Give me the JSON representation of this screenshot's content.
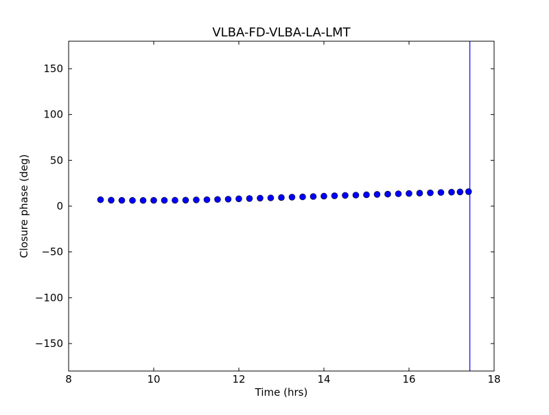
{
  "chart_data": {
    "type": "scatter",
    "title": "VLBA-FD-VLBA-LA-LMT",
    "xlabel": "Time (hrs)",
    "ylabel": "Closure phase (deg)",
    "xlim": [
      8,
      18
    ],
    "ylim": [
      -180,
      180
    ],
    "xticks": [
      8,
      10,
      12,
      14,
      16,
      18
    ],
    "xtick_labels": [
      "8",
      "10",
      "12",
      "14",
      "16",
      "18"
    ],
    "yticks": [
      -150,
      -100,
      -50,
      0,
      50,
      100,
      150
    ],
    "ytick_labels": [
      "−150",
      "−100",
      "−50",
      "0",
      "50",
      "100",
      "150"
    ],
    "grid": false,
    "legend": false,
    "vertical_line_x": 17.43,
    "marker_color": "#0000ff",
    "line_color": "#0000ff",
    "x": [
      8.75,
      9.0,
      9.25,
      9.5,
      9.75,
      10.0,
      10.25,
      10.5,
      10.75,
      11.0,
      11.25,
      11.5,
      11.75,
      12.0,
      12.25,
      12.5,
      12.75,
      13.0,
      13.25,
      13.5,
      13.75,
      14.0,
      14.25,
      14.5,
      14.75,
      15.0,
      15.25,
      15.5,
      15.75,
      16.0,
      16.25,
      16.5,
      16.75,
      17.0,
      17.2,
      17.4
    ],
    "y": [
      7.0,
      6.5,
      6.3,
      6.2,
      6.2,
      6.3,
      6.3,
      6.4,
      6.5,
      6.8,
      7.0,
      7.3,
      7.6,
      8.0,
      8.3,
      8.7,
      9.0,
      9.4,
      9.8,
      10.1,
      10.5,
      10.9,
      11.3,
      11.7,
      12.0,
      12.4,
      12.8,
      13.1,
      13.5,
      13.8,
      14.2,
      14.5,
      14.9,
      15.2,
      15.5,
      15.8
    ]
  }
}
